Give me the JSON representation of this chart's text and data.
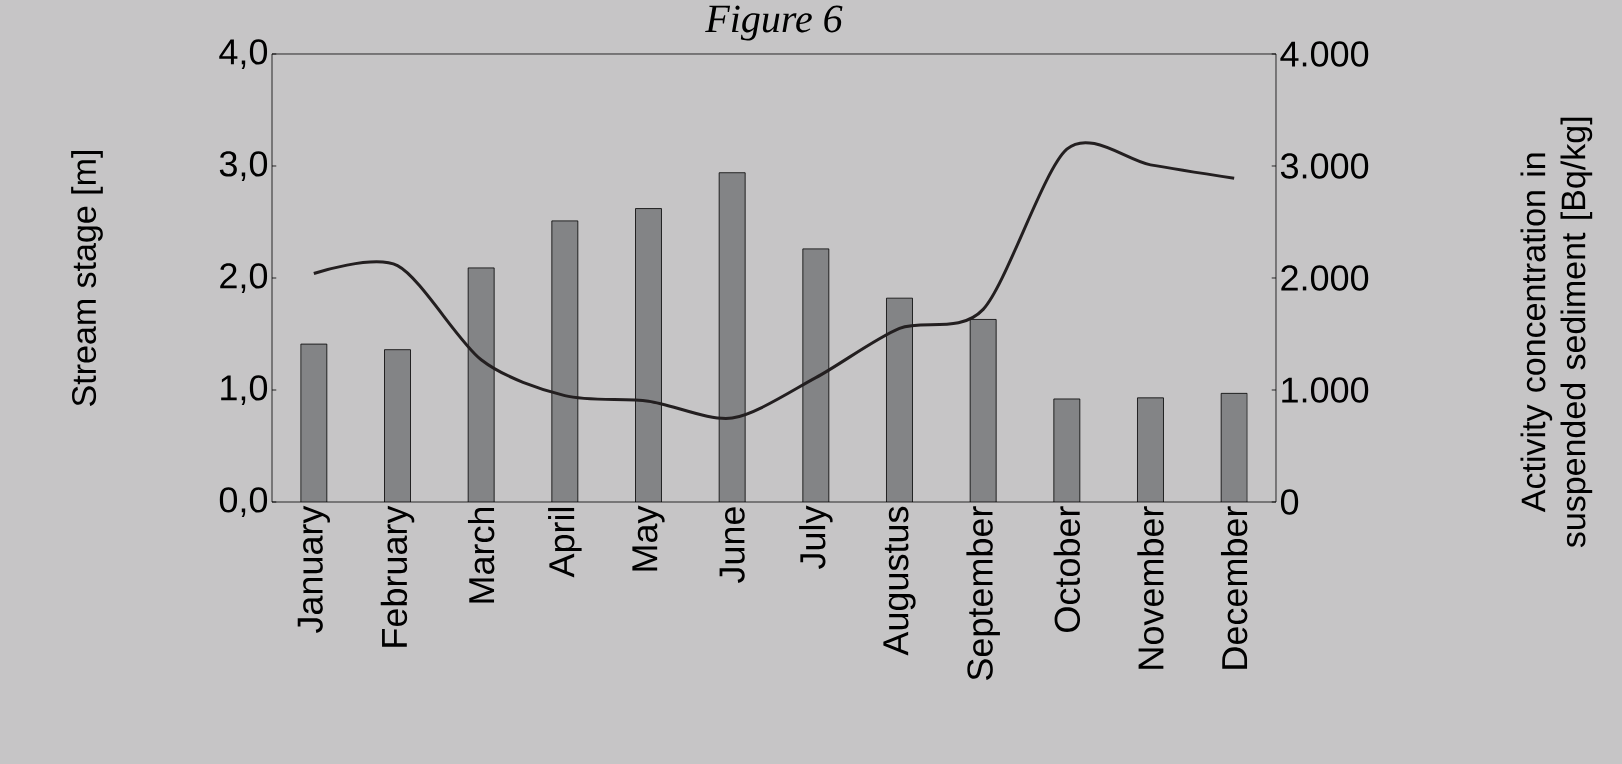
{
  "chart_data": {
    "type": "bar",
    "title": "Figure 6",
    "ylabel": "Stream stage [m]",
    "y2label": "Activity concentration in suspended sediment [Bq/kg]",
    "categories": [
      "January",
      "February",
      "March",
      "April",
      "May",
      "June",
      "July",
      "Augustus",
      "September",
      "October",
      "November",
      "December"
    ],
    "series": [
      {
        "color": "#838486",
        "values": [
          1.41,
          1.36,
          2.09,
          2.51,
          2.62,
          2.94,
          2.26,
          1.82,
          1.63,
          0.92,
          0.93,
          0.97
        ]
      },
      {
        "type": "line",
        "axis": "y2",
        "color": "#231f20",
        "line_style": "solid",
        "values": [
          2040,
          2110,
          1270,
          950,
          900,
          750,
          1110,
          1550,
          1720,
          3150,
          3010,
          2890
        ]
      }
    ],
    "ylim": [
      0,
      4
    ],
    "yticks": [
      {
        "value": 0,
        "label": "0,0"
      },
      {
        "value": 1,
        "label": "1,0"
      },
      {
        "value": 2,
        "label": "2,0"
      },
      {
        "value": 3,
        "label": "3,0"
      },
      {
        "value": 4,
        "label": "4,0"
      }
    ],
    "y2lim": [
      0,
      4000
    ],
    "y2ticks": [
      0,
      {
        "value": 1000,
        "label": "1.000"
      },
      {
        "value": 2000,
        "label": "2.000"
      },
      {
        "value": 3000,
        "label": "3.000"
      },
      {
        "value": 4000,
        "label": "4.000"
      }
    ],
    "marker": "none"
  }
}
